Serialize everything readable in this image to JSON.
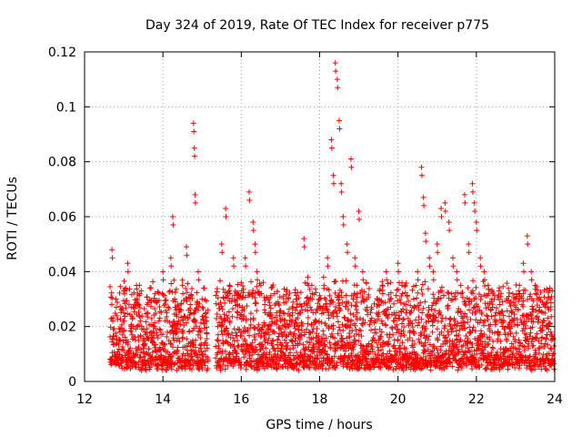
{
  "chart_data": {
    "type": "scatter",
    "title": "Day 324 of 2019, Rate Of TEC Index for receiver p775",
    "xlabel": "GPS time / hours",
    "ylabel": "ROTI / TECUs",
    "xlim": [
      12,
      24
    ],
    "ylim": [
      0,
      0.12
    ],
    "xticks": [
      12,
      14,
      16,
      18,
      20,
      22,
      24
    ],
    "yticks": [
      0,
      0.02,
      0.04,
      0.06,
      0.08,
      0.1,
      0.12
    ],
    "xtick_labels": [
      "12",
      "14",
      "16",
      "18",
      "20",
      "22",
      "24"
    ],
    "ytick_labels": [
      "0",
      "0.02",
      "0.04",
      "0.06",
      "0.08",
      "0.1",
      "0.12"
    ],
    "grid": true,
    "marker": "+",
    "color": "#ff0000",
    "series": [
      {
        "name": "ROTI",
        "x": [
          12.7,
          12.72,
          12.8,
          12.9,
          13.0,
          13.1,
          13.2,
          13.3,
          13.4,
          13.5,
          13.6,
          13.7,
          13.8,
          13.9,
          14.0,
          14.1,
          14.2,
          14.25,
          14.3,
          14.4,
          14.5,
          14.6,
          14.7,
          14.78,
          14.8,
          14.82,
          14.9,
          15.0,
          15.1,
          15.4,
          15.5,
          15.6,
          15.7,
          15.8,
          15.9,
          16.0,
          16.1,
          16.2,
          16.3,
          16.35,
          16.4,
          16.5,
          16.6,
          16.7,
          16.8,
          16.9,
          17.0,
          17.1,
          17.2,
          17.3,
          17.4,
          17.5,
          17.6,
          17.7,
          17.75,
          17.8,
          17.9,
          18.0,
          18.1,
          18.2,
          18.3,
          18.35,
          18.4,
          18.45,
          18.5,
          18.55,
          18.6,
          18.7,
          18.8,
          18.9,
          18.95,
          19.0,
          19.1,
          19.2,
          19.3,
          19.4,
          19.5,
          19.6,
          19.7,
          19.8,
          19.9,
          20.0,
          20.1,
          20.2,
          20.3,
          20.4,
          20.5,
          20.6,
          20.65,
          20.7,
          20.8,
          20.9,
          21.0,
          21.1,
          21.2,
          21.3,
          21.4,
          21.5,
          21.6,
          21.7,
          21.8,
          21.9,
          21.95,
          22.0,
          22.1,
          22.2,
          22.3,
          22.4,
          22.5,
          22.6,
          22.7,
          22.8,
          22.9,
          23.0,
          23.1,
          23.2,
          23.3,
          23.4,
          23.5,
          23.6,
          23.7,
          23.8,
          23.9
        ],
        "y": [
          0.048,
          0.022,
          0.03,
          0.018,
          0.025,
          0.043,
          0.02,
          0.015,
          0.035,
          0.012,
          0.028,
          0.018,
          0.032,
          0.022,
          0.04,
          0.025,
          0.045,
          0.06,
          0.03,
          0.022,
          0.035,
          0.049,
          0.028,
          0.094,
          0.085,
          0.068,
          0.04,
          0.03,
          0.025,
          0.02,
          0.05,
          0.063,
          0.035,
          0.045,
          0.028,
          0.036,
          0.045,
          0.069,
          0.058,
          0.05,
          0.04,
          0.035,
          0.028,
          0.02,
          0.018,
          0.025,
          0.022,
          0.018,
          0.02,
          0.025,
          0.03,
          0.028,
          0.052,
          0.038,
          0.03,
          0.035,
          0.025,
          0.03,
          0.038,
          0.045,
          0.088,
          0.075,
          0.116,
          0.11,
          0.095,
          0.072,
          0.06,
          0.05,
          0.081,
          0.045,
          0.035,
          0.062,
          0.04,
          0.03,
          0.025,
          0.022,
          0.028,
          0.035,
          0.04,
          0.03,
          0.025,
          0.043,
          0.035,
          0.028,
          0.025,
          0.03,
          0.04,
          0.078,
          0.067,
          0.054,
          0.045,
          0.04,
          0.05,
          0.063,
          0.065,
          0.058,
          0.045,
          0.04,
          0.035,
          0.068,
          0.05,
          0.072,
          0.065,
          0.058,
          0.045,
          0.04,
          0.035,
          0.03,
          0.025,
          0.028,
          0.022,
          0.02,
          0.025,
          0.03,
          0.035,
          0.043,
          0.053,
          0.04,
          0.035,
          0.03,
          0.025,
          0.02,
          0.018
        ]
      }
    ],
    "band": {
      "description": "dense cloud of points per time step",
      "x_start": 12.65,
      "x_end": 23.98,
      "gaps": [
        [
          15.15,
          15.35
        ]
      ],
      "y_min": 0.004,
      "y_mean": 0.012,
      "y_spread": 0.014
    }
  }
}
